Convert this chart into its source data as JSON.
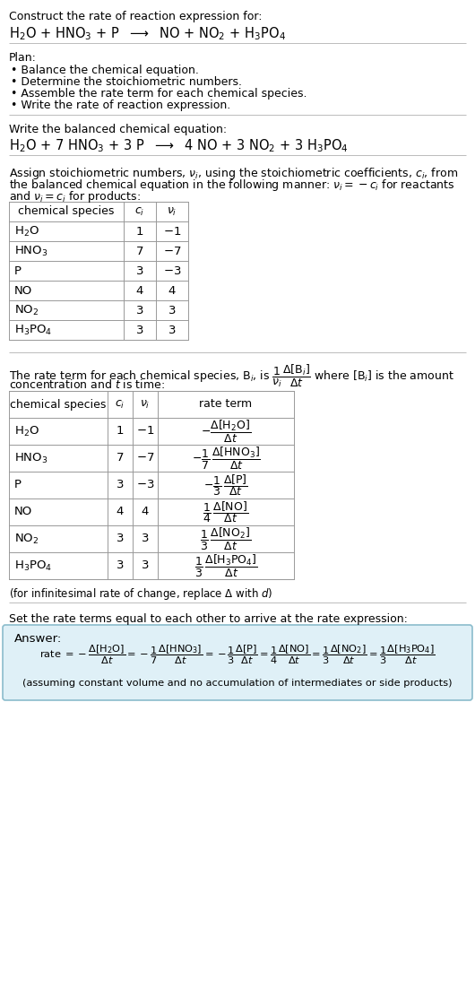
{
  "title_line1": "Construct the rate of reaction expression for:",
  "title_eq": "H$_2$O + HNO$_3$ + P  $\\longrightarrow$  NO + NO$_2$ + H$_3$PO$_4$",
  "plan_header": "Plan:",
  "plan_bullets": [
    "Balance the chemical equation.",
    "Determine the stoichiometric numbers.",
    "Assemble the rate term for each chemical species.",
    "Write the rate of reaction expression."
  ],
  "balanced_header": "Write the balanced chemical equation:",
  "balanced_eq": "H$_2$O + 7 HNO$_3$ + 3 P  $\\longrightarrow$  4 NO + 3 NO$_2$ + 3 H$_3$PO$_4$",
  "assign_text1": "Assign stoichiometric numbers, $\\nu_i$, using the stoichiometric coefficients, $c_i$, from",
  "assign_text2": "the balanced chemical equation in the following manner: $\\nu_i = -c_i$ for reactants",
  "assign_text3": "and $\\nu_i = c_i$ for products:",
  "table1_headers": [
    "chemical species",
    "$c_i$",
    "$\\nu_i$"
  ],
  "table1_rows": [
    [
      "H$_2$O",
      "1",
      "$-1$"
    ],
    [
      "HNO$_3$",
      "7",
      "$-7$"
    ],
    [
      "P",
      "3",
      "$-3$"
    ],
    [
      "NO",
      "4",
      "4"
    ],
    [
      "NO$_2$",
      "3",
      "3"
    ],
    [
      "H$_3$PO$_4$",
      "3",
      "3"
    ]
  ],
  "rate_text1": "The rate term for each chemical species, B$_i$, is $\\dfrac{1}{\\nu_i}\\dfrac{\\Delta[\\mathrm{B}_i]}{\\Delta t}$ where [B$_i$] is the amount",
  "rate_text2": "concentration and $t$ is time:",
  "table2_headers": [
    "chemical species",
    "$c_i$",
    "$\\nu_i$",
    "rate term"
  ],
  "table2_rows": [
    [
      "H$_2$O",
      "1",
      "$-1$",
      "$-\\dfrac{\\Delta[\\mathrm{H_2O}]}{\\Delta t}$"
    ],
    [
      "HNO$_3$",
      "7",
      "$-7$",
      "$-\\dfrac{1}{7}\\,\\dfrac{\\Delta[\\mathrm{HNO_3}]}{\\Delta t}$"
    ],
    [
      "P",
      "3",
      "$-3$",
      "$-\\dfrac{1}{3}\\,\\dfrac{\\Delta[\\mathrm{P}]}{\\Delta t}$"
    ],
    [
      "NO",
      "4",
      "4",
      "$\\dfrac{1}{4}\\,\\dfrac{\\Delta[\\mathrm{NO}]}{\\Delta t}$"
    ],
    [
      "NO$_2$",
      "3",
      "3",
      "$\\dfrac{1}{3}\\,\\dfrac{\\Delta[\\mathrm{NO_2}]}{\\Delta t}$"
    ],
    [
      "H$_3$PO$_4$",
      "3",
      "3",
      "$\\dfrac{1}{3}\\,\\dfrac{\\Delta[\\mathrm{H_3PO_4}]}{\\Delta t}$"
    ]
  ],
  "infinitesimal_note": "(for infinitesimal rate of change, replace Δ with $d$)",
  "set_equal_text": "Set the rate terms equal to each other to arrive at the rate expression:",
  "answer_label": "Answer:",
  "answer_rate_parts": [
    "rate $= -\\dfrac{\\Delta[\\mathrm{H_2O}]}{\\Delta t} = -\\dfrac{1}{7}\\dfrac{\\Delta[\\mathrm{HNO_3}]}{\\Delta t} = -\\dfrac{1}{3}\\dfrac{\\Delta[\\mathrm{P}]}{\\Delta t} = \\dfrac{1}{4}\\dfrac{\\Delta[\\mathrm{NO}]}{\\Delta t} = \\dfrac{1}{3}\\dfrac{\\Delta[\\mathrm{NO_2}]}{\\Delta t} = \\dfrac{1}{3}\\dfrac{\\Delta[\\mathrm{H_3PO_4}]}{\\Delta t}$"
  ],
  "answer_note": "(assuming constant volume and no accumulation of intermediates or side products)",
  "bg_color": "#ffffff",
  "text_color": "#000000",
  "answer_box_facecolor": "#dff0f7",
  "answer_box_edgecolor": "#8bbccc",
  "separator_color": "#bbbbbb",
  "font_size": 9.0
}
